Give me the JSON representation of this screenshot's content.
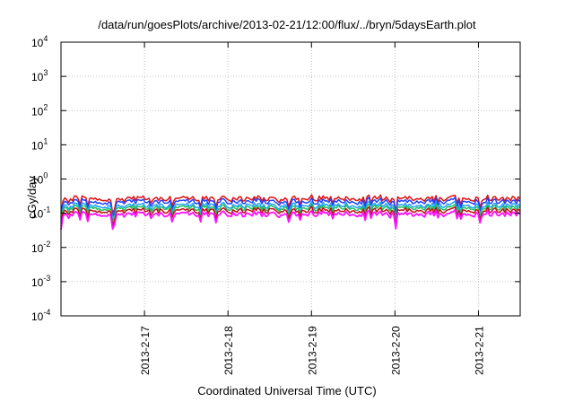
{
  "chart_data": {
    "type": "line",
    "title": "/data/run/goesPlots/archive/2013-02-21/12:00/flux/../bryn/5daysEarth.plot",
    "xlabel": "Coordinated Universal Time (UTC)",
    "ylabel": "cGy/day",
    "yscale": "log",
    "ylim": [
      0.0001,
      10000
    ],
    "xlim": [
      0,
      5.5
    ],
    "y_ticks": [
      {
        "value": 0.0001,
        "base": "10",
        "exp": "-4"
      },
      {
        "value": 0.001,
        "base": "10",
        "exp": "-3"
      },
      {
        "value": 0.01,
        "base": "10",
        "exp": "-2"
      },
      {
        "value": 0.1,
        "base": "10",
        "exp": "-1"
      },
      {
        "value": 1,
        "base": "10",
        "exp": "0"
      },
      {
        "value": 10,
        "base": "10",
        "exp": "1"
      },
      {
        "value": 100,
        "base": "10",
        "exp": "2"
      },
      {
        "value": 1000,
        "base": "10",
        "exp": "3"
      },
      {
        "value": 10000,
        "base": "10",
        "exp": "4"
      }
    ],
    "x_ticks": [
      {
        "value": 1,
        "label": "2013-2-17"
      },
      {
        "value": 2,
        "label": "2013-2-18"
      },
      {
        "value": 3,
        "label": "2013-2-19"
      },
      {
        "value": 4,
        "label": "2013-2-20"
      },
      {
        "value": 5,
        "label": "2013-2-21"
      }
    ],
    "grid": true,
    "series": [
      {
        "color": "#e01010",
        "level": 0.27
      },
      {
        "color": "#2040ff",
        "level": 0.22
      },
      {
        "color": "#20a0ff",
        "level": 0.17
      },
      {
        "color": "#20c060",
        "level": 0.145
      },
      {
        "color": "#c01010",
        "level": 0.12
      },
      {
        "color": "#ff10ff",
        "level": 0.095
      }
    ]
  }
}
